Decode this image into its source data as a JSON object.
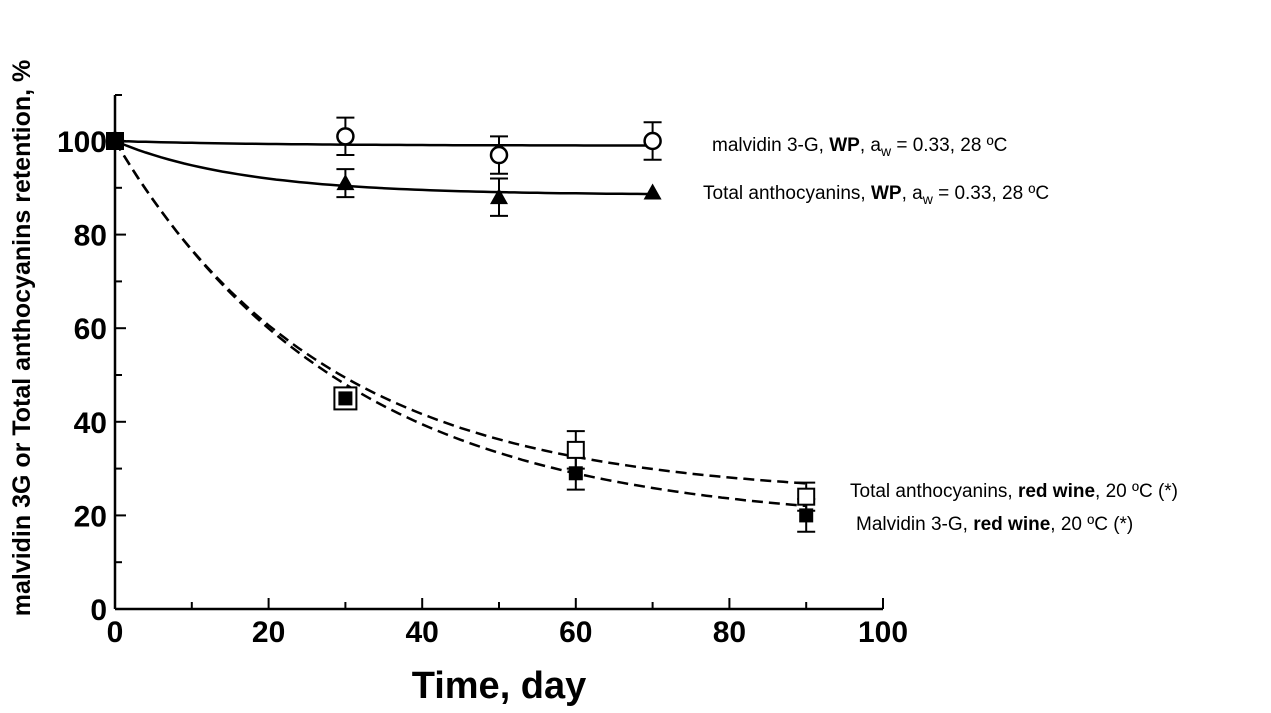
{
  "chart_data": {
    "type": "scatter",
    "xlabel": "Time, day",
    "ylabel": "malvidin 3G or Total anthocyanins retention, %",
    "xlim": [
      0,
      100
    ],
    "ylim": [
      0,
      100
    ],
    "xticks": [
      0,
      20,
      40,
      60,
      80,
      100
    ],
    "yticks": [
      0,
      20,
      40,
      60,
      80,
      100
    ],
    "grid": false,
    "legend_placement": "right",
    "series": [
      {
        "key": "malvidin_wp",
        "legend": {
          "pre": "malvidin 3-G, ",
          "bold": "WP",
          "mid": ", a",
          "sub": "w",
          "post": " = 0.33, 28 ºC"
        },
        "marker": "open-circle",
        "line": "solid",
        "points": [
          {
            "x": 0,
            "y": 100
          },
          {
            "x": 30,
            "y": 101,
            "err": 4
          },
          {
            "x": 50,
            "y": 97,
            "err": 4
          },
          {
            "x": 70,
            "y": 100,
            "err": 4
          }
        ],
        "fit": {
          "model": "exp",
          "c": 99,
          "a": 1,
          "k": 0.05
        }
      },
      {
        "key": "total_wp",
        "legend": {
          "pre": "Total anthocyanins, ",
          "bold": "WP",
          "mid": ",  a",
          "sub": "w",
          "post": " = 0.33, 28 ºC"
        },
        "marker": "filled-triangle",
        "line": "solid",
        "points": [
          {
            "x": 0,
            "y": 100
          },
          {
            "x": 30,
            "y": 91,
            "err": 3
          },
          {
            "x": 50,
            "y": 88,
            "err": 4
          },
          {
            "x": 70,
            "y": 89
          }
        ],
        "fit": {
          "model": "exp",
          "c": 88.5,
          "a": 11.5,
          "k": 0.06
        }
      },
      {
        "key": "total_redwine",
        "legend": {
          "pre": "Total anthocyanins, ",
          "bold": "red wine",
          "mid": ", 20 ºC (*)",
          "sub": "",
          "post": ""
        },
        "marker": "open-square",
        "line": "dashed",
        "points": [
          {
            "x": 0,
            "y": 100
          },
          {
            "x": 30,
            "y": 45
          },
          {
            "x": 60,
            "y": 34,
            "err": 4
          },
          {
            "x": 90,
            "y": 24,
            "err": 3
          }
        ],
        "fit": {
          "model": "exp",
          "c": 24,
          "a": 76,
          "k": 0.0365
        }
      },
      {
        "key": "malvidin_redwine",
        "legend": {
          "pre": "Malvidin 3-G, ",
          "bold": "red wine",
          "mid": ", 20 ºC (*)",
          "sub": "",
          "post": ""
        },
        "marker": "filled-square",
        "line": "dashed",
        "points": [
          {
            "x": 0,
            "y": 100
          },
          {
            "x": 30,
            "y": 45
          },
          {
            "x": 60,
            "y": 29,
            "err": 3.5
          },
          {
            "x": 90,
            "y": 20,
            "err": 3.5
          }
        ],
        "fit": {
          "model": "exp",
          "c": 18,
          "a": 82,
          "k": 0.0335
        }
      }
    ]
  }
}
